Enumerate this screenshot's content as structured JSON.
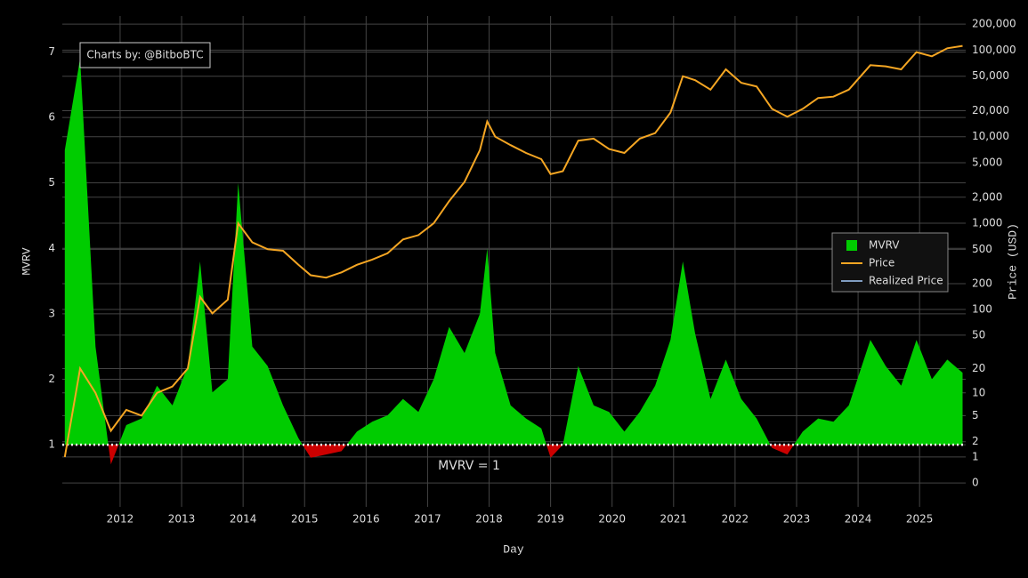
{
  "chart_data": {
    "type": "area",
    "annotations": [
      "Charts by: @BitboBTC",
      "MVRV = 1"
    ],
    "xlabel": "Day",
    "ylabel": "MVRV",
    "y2label": "Price (USD)",
    "x": [
      2011.1,
      2011.35,
      2011.6,
      2011.85,
      2012.1,
      2012.35,
      2012.6,
      2012.85,
      2013.1,
      2013.3,
      2013.5,
      2013.75,
      2013.92,
      2014.15,
      2014.4,
      2014.65,
      2014.9,
      2015.1,
      2015.35,
      2015.6,
      2015.85,
      2016.1,
      2016.35,
      2016.6,
      2016.85,
      2017.1,
      2017.35,
      2017.6,
      2017.85,
      2017.97,
      2018.1,
      2018.35,
      2018.6,
      2018.85,
      2019.0,
      2019.2,
      2019.45,
      2019.7,
      2019.95,
      2020.2,
      2020.45,
      2020.7,
      2020.95,
      2021.15,
      2021.35,
      2021.6,
      2021.85,
      2022.1,
      2022.35,
      2022.6,
      2022.85,
      2023.1,
      2023.35,
      2023.6,
      2023.85,
      2024.2,
      2024.45,
      2024.7,
      2024.95,
      2025.2,
      2025.45,
      2025.7
    ],
    "series": [
      {
        "name": "MVRV",
        "color": "#00cc00",
        "below_color": "#cc0000",
        "baseline": 1,
        "values": [
          5.5,
          6.9,
          2.5,
          0.7,
          1.3,
          1.4,
          1.9,
          1.6,
          2.2,
          3.8,
          1.8,
          2.0,
          5.0,
          2.5,
          2.2,
          1.6,
          1.1,
          0.8,
          0.85,
          0.9,
          1.2,
          1.35,
          1.45,
          1.7,
          1.5,
          2.0,
          2.8,
          2.4,
          3.0,
          4.0,
          2.4,
          1.6,
          1.4,
          1.25,
          0.8,
          1.0,
          2.2,
          1.6,
          1.5,
          1.2,
          1.5,
          1.9,
          2.6,
          3.8,
          2.7,
          1.7,
          2.3,
          1.7,
          1.4,
          0.95,
          0.85,
          1.2,
          1.4,
          1.35,
          1.6,
          2.6,
          2.2,
          1.9,
          2.6,
          2.0,
          2.3,
          2.1
        ]
      },
      {
        "name": "Price",
        "color": "#f5a623",
        "axis": "y2",
        "values": [
          1,
          20,
          10,
          3,
          6,
          5,
          10,
          12,
          20,
          140,
          90,
          130,
          1000,
          600,
          500,
          480,
          330,
          250,
          235,
          270,
          330,
          380,
          450,
          650,
          730,
          1000,
          1800,
          3000,
          7000,
          15000,
          10000,
          8000,
          6500,
          5500,
          3700,
          4000,
          9000,
          9500,
          7200,
          6500,
          9500,
          11000,
          19000,
          50000,
          45000,
          35000,
          60000,
          42000,
          38000,
          21000,
          17000,
          21000,
          28000,
          29000,
          35000,
          67000,
          65000,
          60000,
          95000,
          85000,
          105000,
          112000
        ]
      },
      {
        "name": "Realized Price",
        "color": "#7f9cc0",
        "axis": "y2"
      }
    ],
    "xlim": [
      2011.06,
      2025.75
    ],
    "xticks": [
      2012,
      2013,
      2014,
      2015,
      2016,
      2017,
      2018,
      2019,
      2020,
      2021,
      2022,
      2023,
      2024,
      2025
    ],
    "ylim": [
      0.05,
      7.55
    ],
    "yticks": [
      1,
      2,
      3,
      4,
      5,
      6,
      7
    ],
    "y2lim": [
      -0.47,
      248000
    ],
    "y2scale": "log1p",
    "y2ticks": [
      0,
      1,
      2,
      5,
      10,
      20,
      50,
      100,
      200,
      500,
      {
        "value": 1000,
        "label": "1,000"
      },
      {
        "value": 2000,
        "label": "2,000"
      },
      {
        "value": 5000,
        "label": "5,000"
      },
      {
        "value": 10000,
        "label": "10,000"
      },
      {
        "value": 20000,
        "label": "20,000"
      },
      {
        "value": 50000,
        "label": "50,000"
      },
      {
        "value": 100000,
        "label": "100,000"
      },
      {
        "value": 200000,
        "label": "200,000"
      }
    ],
    "grid": true,
    "legend": "right"
  }
}
